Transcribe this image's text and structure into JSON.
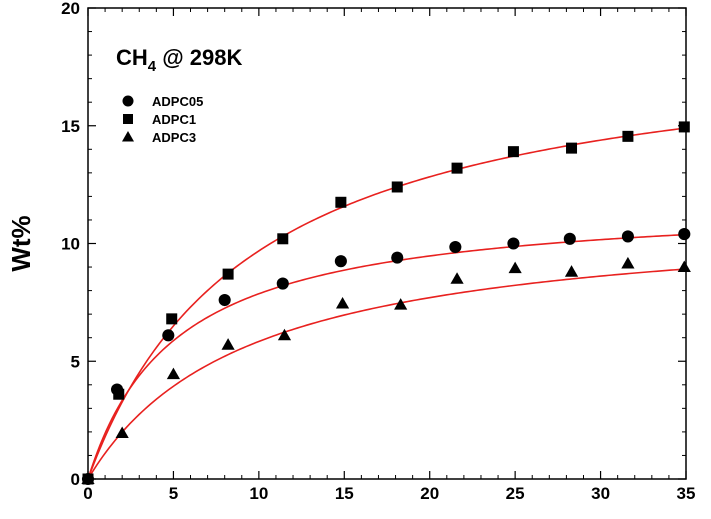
{
  "chart_data": {
    "type": "scatter",
    "title": {
      "main": "CH",
      "subscript": "4",
      "suffix": " @ 298K"
    },
    "xlabel": "",
    "ylabel": "Wt%",
    "xlim": [
      0,
      35
    ],
    "ylim": [
      0,
      20
    ],
    "xticks": [
      "0",
      "5",
      "10",
      "15",
      "20",
      "25",
      "30",
      "35"
    ],
    "yticks": [
      "0",
      "5",
      "10",
      "15",
      "20"
    ],
    "legend_position": "top-left",
    "fit_color": "#e8211f",
    "marker_color": "#000000",
    "series": [
      {
        "name": "ADPC05",
        "marker": "circle",
        "x": [
          0.0,
          1.7,
          4.7,
          8.0,
          11.4,
          14.8,
          18.1,
          21.5,
          24.9,
          28.2,
          31.6,
          34.9
        ],
        "y": [
          0.0,
          3.8,
          6.1,
          7.6,
          8.3,
          9.25,
          9.4,
          9.85,
          10.0,
          10.2,
          10.3,
          10.4
        ],
        "fit": {
          "qmax": 11.9,
          "b": 0.195
        }
      },
      {
        "name": "ADPC1",
        "marker": "square",
        "x": [
          0.0,
          1.8,
          4.9,
          8.2,
          11.4,
          14.8,
          18.1,
          21.6,
          24.9,
          28.3,
          31.6,
          34.9
        ],
        "y": [
          0.0,
          3.6,
          6.8,
          8.7,
          10.2,
          11.75,
          12.4,
          13.2,
          13.9,
          14.05,
          14.55,
          14.95
        ],
        "fit": {
          "qmax": 19.0,
          "b": 0.104
        }
      },
      {
        "name": "ADPC3",
        "marker": "triangle",
        "x": [
          0.0,
          2.0,
          5.0,
          8.2,
          11.5,
          14.9,
          18.3,
          21.6,
          25.0,
          28.3,
          31.6,
          34.9
        ],
        "y": [
          0.0,
          1.95,
          4.45,
          5.7,
          6.1,
          7.45,
          7.4,
          8.5,
          8.95,
          8.8,
          9.15,
          9.0
        ],
        "fit": {
          "qmax": 11.3,
          "b": 0.107
        }
      }
    ]
  }
}
